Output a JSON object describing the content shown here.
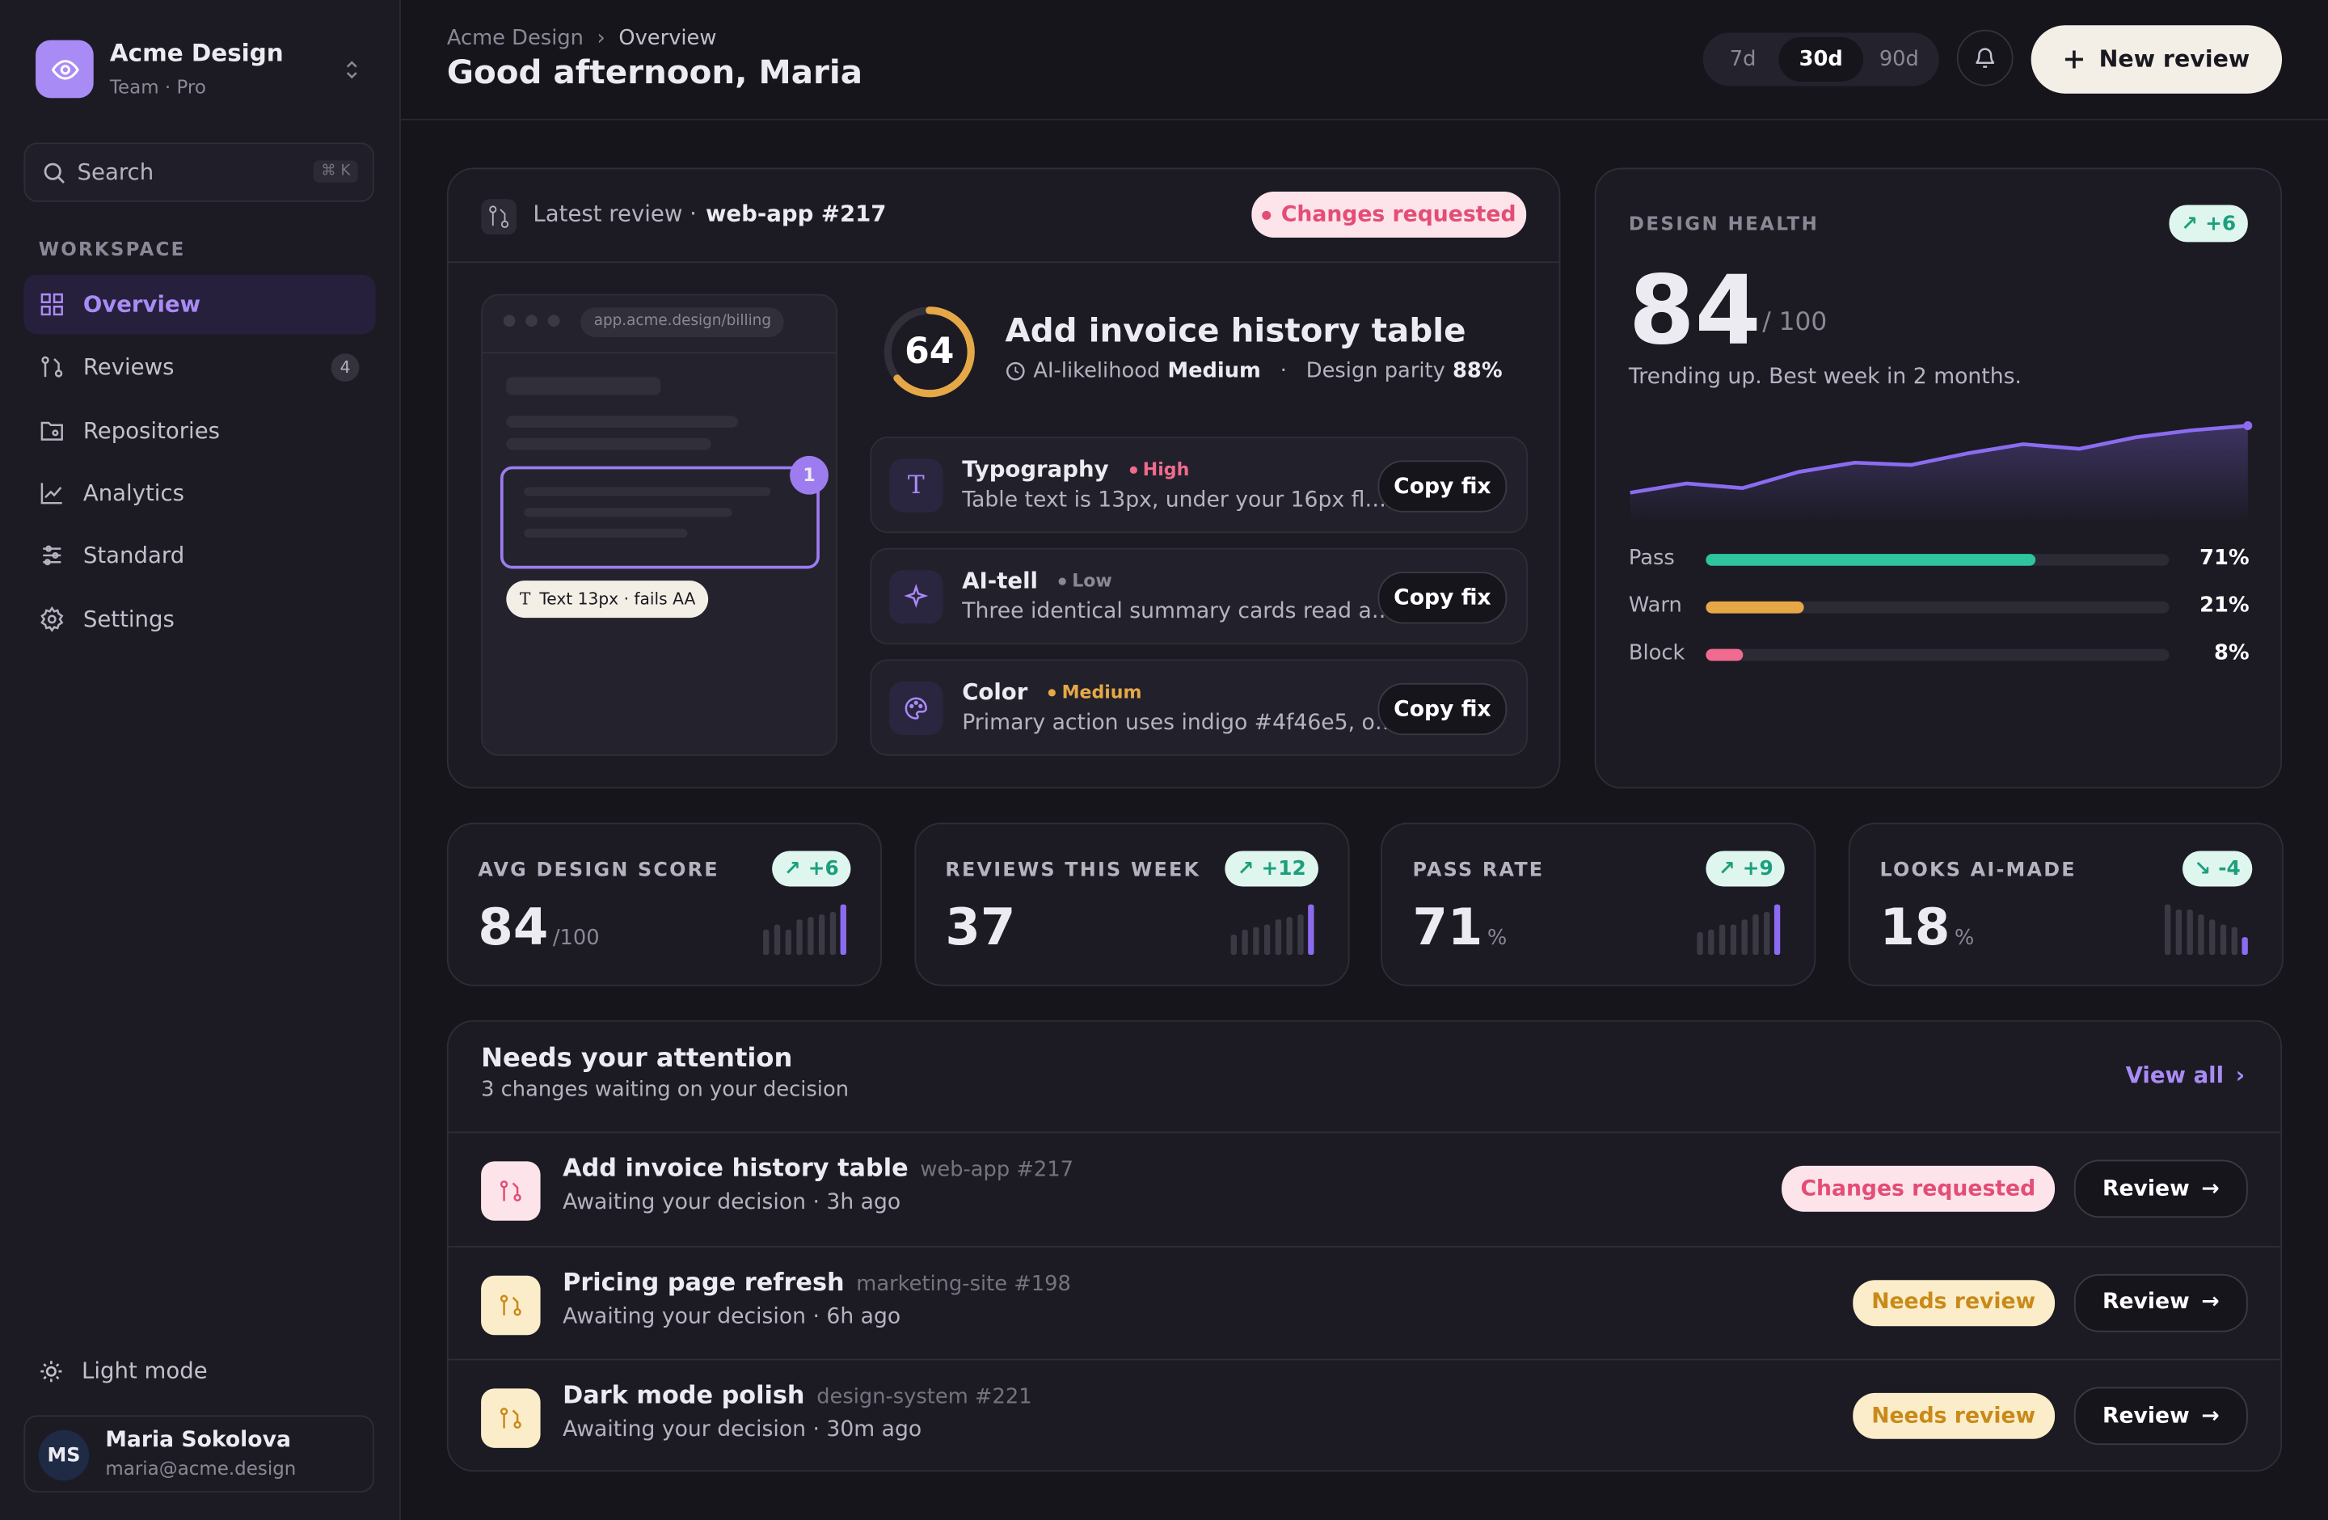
{
  "sidebar": {
    "brand": "Acme Design",
    "plan": "Team · Pro",
    "search": "Search",
    "shortcut": "⌘ K",
    "section": "WORKSPACE",
    "active_index": 0,
    "nav": [
      {
        "label": "Overview"
      },
      {
        "label": "Reviews",
        "badge": "4"
      },
      {
        "label": "Repositories"
      },
      {
        "label": "Analytics"
      },
      {
        "label": "Standard"
      },
      {
        "label": "Settings"
      }
    ],
    "light_mode": "Light mode",
    "user": {
      "initials": "MS",
      "name": "Maria Sokolova",
      "email": "maria@acme.design"
    }
  },
  "header": {
    "breadcrumb": [
      "Acme Design",
      "Overview"
    ],
    "greeting": "Good afternoon, Maria",
    "ranges": [
      "7d",
      "30d",
      "90d"
    ],
    "active_range_index": 1,
    "new_review": "New review"
  },
  "latest_review": {
    "label": "Latest review ·",
    "repo": "web-app #217",
    "status": "Changes requested",
    "preview": {
      "url": "app.acme.design/billing",
      "marker": "1",
      "note": "Text 13px · fails AA"
    },
    "score": 64,
    "score_max": 100,
    "title": "Add invoice history table",
    "likelihood_label": "AI-likelihood",
    "likelihood": "Medium",
    "separator": "·",
    "parity_label": "Design parity",
    "parity": "88%",
    "issues": [
      {
        "title": "Typography",
        "severity": "High",
        "color": "#f06b8f",
        "text": "Table text is 13px, under your 16px fl…",
        "action": "Copy fix"
      },
      {
        "title": "AI-tell",
        "severity": "Low",
        "color": "#8b8896",
        "text": "Three identical summary cards read a…",
        "action": "Copy fix"
      },
      {
        "title": "Color",
        "severity": "Medium",
        "color": "#e6a847",
        "text": "Primary action uses indigo #4f46e5, o…",
        "action": "Copy fix"
      }
    ]
  },
  "health": {
    "label": "DESIGN HEALTH",
    "delta": "+6",
    "score": 84,
    "max": "/ 100",
    "note": "Trending up. Best week in 2 months.",
    "trend": {
      "type": "line",
      "values": [
        58,
        62,
        60,
        67,
        71,
        70,
        75,
        79,
        77,
        82,
        85,
        87
      ],
      "ylim": [
        45,
        90
      ],
      "color": "#8b6cf0"
    },
    "xlim": [
      0,
      100
    ],
    "bars": [
      {
        "name": "Pass",
        "value": 71,
        "label": "71%",
        "color": "#2ec4a0"
      },
      {
        "name": "Warn",
        "value": 21,
        "label": "21%",
        "color": "#e6a847"
      },
      {
        "name": "Block",
        "value": 8,
        "label": "8%",
        "color": "#f06b8f"
      }
    ]
  },
  "stats": [
    {
      "label": "AVG DESIGN SCORE",
      "value": 84,
      "unit": "/100",
      "delta": "+6",
      "spark": [
        5,
        6,
        5,
        7,
        7.5,
        8,
        8.5,
        10
      ]
    },
    {
      "label": "REVIEWS THIS WEEK",
      "value": 37,
      "unit": null,
      "delta": "+12",
      "spark": [
        4,
        5,
        5.5,
        6,
        7,
        7.5,
        8,
        10
      ]
    },
    {
      "label": "PASS RATE",
      "value": 71,
      "unit": "%",
      "delta": "+9",
      "spark": [
        4.5,
        5,
        6,
        6,
        7,
        8,
        8.5,
        10
      ]
    },
    {
      "label": "LOOKS AI-MADE",
      "value": 18,
      "unit": "%",
      "delta": "-4",
      "spark": [
        10,
        9,
        9,
        8,
        7,
        6,
        5.5,
        3.5
      ]
    }
  ],
  "attention": {
    "title": "Needs your attention",
    "subtitle": "3 changes waiting on your decision",
    "view_all": "View all",
    "rows": [
      {
        "title": "Add invoice history table",
        "repo": "web-app #217",
        "meta": "Awaiting your decision · 3h ago",
        "status": "Changes requested",
        "tone": "pink",
        "action": "Review"
      },
      {
        "title": "Pricing page refresh",
        "repo": "marketing-site #198",
        "meta": "Awaiting your decision · 6h ago",
        "status": "Needs review",
        "tone": "amber",
        "action": "Review"
      },
      {
        "title": "Dark mode polish",
        "repo": "design-system #221",
        "meta": "Awaiting your decision · 30m ago",
        "status": "Needs review",
        "tone": "amber",
        "action": "Review"
      }
    ]
  }
}
